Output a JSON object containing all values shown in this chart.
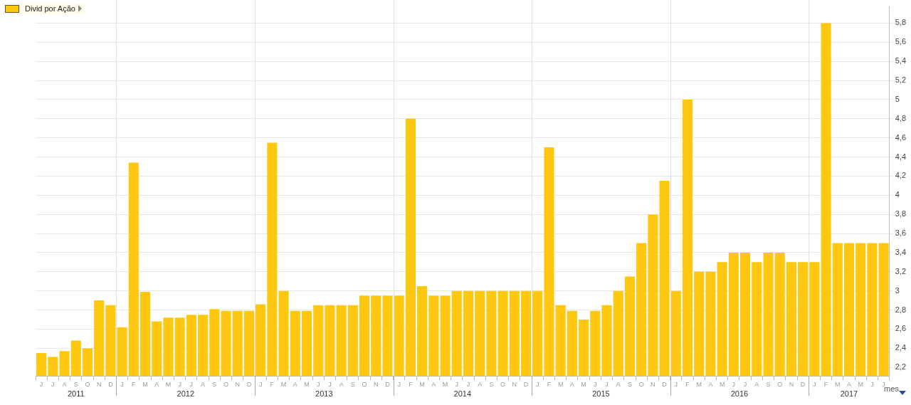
{
  "chart_data": {
    "type": "bar",
    "xlabel": "mes",
    "legend": "top left",
    "grid": true,
    "categories": [
      "J",
      "J",
      "A",
      "S",
      "O",
      "N",
      "D",
      "J",
      "F",
      "M",
      "A",
      "M",
      "J",
      "J",
      "A",
      "S",
      "O",
      "N",
      "D",
      "J",
      "F",
      "M",
      "A",
      "M",
      "J",
      "J",
      "A",
      "S",
      "O",
      "N",
      "D",
      "J",
      "F",
      "M",
      "A",
      "M",
      "J",
      "J",
      "A",
      "S",
      "O",
      "N",
      "D",
      "J",
      "F",
      "M",
      "A",
      "M",
      "J",
      "J",
      "A",
      "S",
      "O",
      "N",
      "D",
      "J",
      "F",
      "M",
      "A",
      "M",
      "J",
      "J",
      "A",
      "S",
      "O",
      "N",
      "D",
      "J",
      "F",
      "M",
      "A",
      "M",
      "J",
      "J"
    ],
    "ylim": [
      2.11,
      5.97
    ],
    "yticks": [
      {
        "value": 2.2,
        "label": "2,2"
      },
      {
        "value": 2.4,
        "label": "2,4"
      },
      {
        "value": 2.6,
        "label": "2,6"
      },
      {
        "value": 2.8,
        "label": "2,8"
      },
      3,
      {
        "value": 3.2,
        "label": "3,2"
      },
      {
        "value": 3.4,
        "label": "3,4"
      },
      {
        "value": 3.6,
        "label": "3,6"
      },
      {
        "value": 3.8,
        "label": "3,8"
      },
      4,
      {
        "value": 4.2,
        "label": "4,2"
      },
      {
        "value": 4.4,
        "label": "4,4"
      },
      {
        "value": 4.6,
        "label": "4,6"
      },
      {
        "value": 4.8,
        "label": "4,8"
      },
      5,
      {
        "value": 5.2,
        "label": "5,2"
      },
      {
        "value": 5.4,
        "label": "5,4"
      },
      {
        "value": 5.6,
        "label": "5,6"
      },
      {
        "value": 5.8,
        "label": "5,8"
      }
    ],
    "annotations": [
      "2011",
      "2012",
      "2013",
      "2014",
      "2015",
      "2016",
      "2017"
    ],
    "series": [
      {
        "name": "Divid por Ação",
        "color": "#fdc80f",
        "values": [
          2.35,
          2.31,
          2.37,
          2.48,
          2.4,
          2.9,
          2.85,
          2.62,
          4.34,
          2.99,
          2.68,
          2.72,
          2.72,
          2.75,
          2.75,
          2.81,
          2.79,
          2.79,
          2.79,
          2.86,
          4.55,
          3.0,
          2.79,
          2.79,
          2.85,
          2.85,
          2.85,
          2.85,
          2.95,
          2.95,
          2.95,
          2.95,
          4.8,
          3.05,
          2.95,
          2.95,
          3.0,
          3.0,
          3.0,
          3.0,
          3.0,
          3.0,
          3.0,
          3.0,
          4.5,
          2.85,
          2.79,
          2.7,
          2.79,
          2.85,
          3.0,
          3.15,
          3.5,
          3.8,
          4.15,
          3.0,
          5.0,
          3.2,
          3.2,
          3.3,
          3.4,
          3.4,
          3.3,
          3.4,
          3.4,
          3.3,
          3.3,
          3.3,
          5.8,
          3.5,
          3.5,
          3.5,
          3.5,
          3.5
        ]
      }
    ]
  }
}
